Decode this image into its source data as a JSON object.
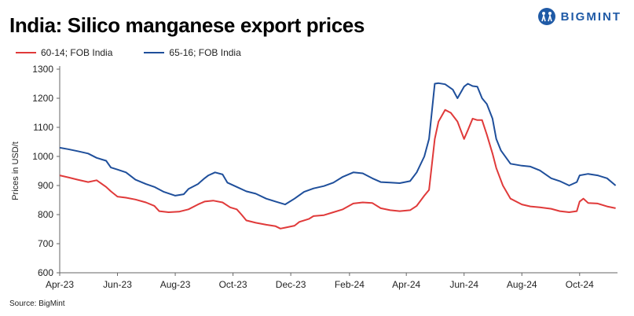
{
  "title": "India: Silico manganese export prices",
  "brand": {
    "name": "BIGMINT",
    "color": "#1f5aa6"
  },
  "source": "Source: BigMint",
  "chart_data": {
    "type": "line",
    "ylabel": "Prices in USD/t",
    "ylim": [
      600,
      1300
    ],
    "yticks": [
      600,
      700,
      800,
      900,
      1000,
      1100,
      1200,
      1300
    ],
    "xlim": [
      "2023-04-01",
      "2024-11-10"
    ],
    "xticks": [
      {
        "label": "Apr-23",
        "date": "2023-04-01"
      },
      {
        "label": "Jun-23",
        "date": "2023-06-01"
      },
      {
        "label": "Aug-23",
        "date": "2023-08-01"
      },
      {
        "label": "Oct-23",
        "date": "2023-10-01"
      },
      {
        "label": "Dec-23",
        "date": "2023-12-01"
      },
      {
        "label": "Feb-24",
        "date": "2024-02-01"
      },
      {
        "label": "Apr-24",
        "date": "2024-04-01"
      },
      {
        "label": "Jun-24",
        "date": "2024-06-01"
      },
      {
        "label": "Aug-24",
        "date": "2024-08-01"
      },
      {
        "label": "Oct-24",
        "date": "2024-10-01"
      }
    ],
    "legend_position": "top-left",
    "grid": false,
    "series": [
      {
        "name": "60-14; FOB India",
        "color": "#e03a3a",
        "points": [
          [
            "2023-04-01",
            935
          ],
          [
            "2023-04-10",
            928
          ],
          [
            "2023-04-20",
            920
          ],
          [
            "2023-05-01",
            912
          ],
          [
            "2023-05-10",
            918
          ],
          [
            "2023-05-20",
            895
          ],
          [
            "2023-05-25",
            880
          ],
          [
            "2023-06-01",
            862
          ],
          [
            "2023-06-10",
            858
          ],
          [
            "2023-06-20",
            852
          ],
          [
            "2023-07-01",
            842
          ],
          [
            "2023-07-10",
            830
          ],
          [
            "2023-07-15",
            812
          ],
          [
            "2023-07-25",
            808
          ],
          [
            "2023-08-05",
            810
          ],
          [
            "2023-08-15",
            818
          ],
          [
            "2023-08-25",
            835
          ],
          [
            "2023-09-01",
            845
          ],
          [
            "2023-09-10",
            848
          ],
          [
            "2023-09-20",
            842
          ],
          [
            "2023-09-28",
            825
          ],
          [
            "2023-10-05",
            818
          ],
          [
            "2023-10-10",
            800
          ],
          [
            "2023-10-15",
            780
          ],
          [
            "2023-10-25",
            772
          ],
          [
            "2023-11-05",
            765
          ],
          [
            "2023-11-15",
            760
          ],
          [
            "2023-11-20",
            752
          ],
          [
            "2023-11-25",
            755
          ],
          [
            "2023-12-05",
            762
          ],
          [
            "2023-12-10",
            775
          ],
          [
            "2023-12-20",
            785
          ],
          [
            "2023-12-25",
            795
          ],
          [
            "2024-01-05",
            798
          ],
          [
            "2024-01-15",
            808
          ],
          [
            "2024-01-25",
            818
          ],
          [
            "2024-02-05",
            838
          ],
          [
            "2024-02-15",
            842
          ],
          [
            "2024-02-25",
            840
          ],
          [
            "2024-03-05",
            822
          ],
          [
            "2024-03-15",
            815
          ],
          [
            "2024-03-25",
            812
          ],
          [
            "2024-04-05",
            815
          ],
          [
            "2024-04-12",
            830
          ],
          [
            "2024-04-20",
            865
          ],
          [
            "2024-04-25",
            885
          ],
          [
            "2024-05-01",
            1060
          ],
          [
            "2024-05-05",
            1120
          ],
          [
            "2024-05-12",
            1160
          ],
          [
            "2024-05-18",
            1150
          ],
          [
            "2024-05-25",
            1120
          ],
          [
            "2024-06-01",
            1060
          ],
          [
            "2024-06-05",
            1090
          ],
          [
            "2024-06-10",
            1130
          ],
          [
            "2024-06-15",
            1125
          ],
          [
            "2024-06-20",
            1125
          ],
          [
            "2024-06-25",
            1075
          ],
          [
            "2024-07-01",
            1010
          ],
          [
            "2024-07-05",
            960
          ],
          [
            "2024-07-12",
            900
          ],
          [
            "2024-07-20",
            855
          ],
          [
            "2024-08-01",
            835
          ],
          [
            "2024-08-10",
            828
          ],
          [
            "2024-08-20",
            825
          ],
          [
            "2024-09-01",
            820
          ],
          [
            "2024-09-10",
            812
          ],
          [
            "2024-09-20",
            808
          ],
          [
            "2024-09-28",
            812
          ],
          [
            "2024-10-01",
            845
          ],
          [
            "2024-10-05",
            855
          ],
          [
            "2024-10-10",
            840
          ],
          [
            "2024-10-20",
            838
          ],
          [
            "2024-10-30",
            828
          ],
          [
            "2024-11-08",
            822
          ]
        ]
      },
      {
        "name": "65-16; FOB India",
        "color": "#1f4f9b",
        "points": [
          [
            "2023-04-01",
            1030
          ],
          [
            "2023-04-10",
            1025
          ],
          [
            "2023-04-20",
            1018
          ],
          [
            "2023-05-01",
            1010
          ],
          [
            "2023-05-10",
            995
          ],
          [
            "2023-05-20",
            985
          ],
          [
            "2023-05-25",
            962
          ],
          [
            "2023-06-01",
            955
          ],
          [
            "2023-06-10",
            945
          ],
          [
            "2023-06-20",
            920
          ],
          [
            "2023-07-01",
            905
          ],
          [
            "2023-07-10",
            895
          ],
          [
            "2023-07-20",
            878
          ],
          [
            "2023-08-01",
            865
          ],
          [
            "2023-08-10",
            870
          ],
          [
            "2023-08-15",
            888
          ],
          [
            "2023-08-25",
            905
          ],
          [
            "2023-09-01",
            925
          ],
          [
            "2023-09-05",
            935
          ],
          [
            "2023-09-12",
            945
          ],
          [
            "2023-09-20",
            938
          ],
          [
            "2023-09-25",
            910
          ],
          [
            "2023-10-05",
            895
          ],
          [
            "2023-10-15",
            880
          ],
          [
            "2023-10-25",
            872
          ],
          [
            "2023-11-05",
            855
          ],
          [
            "2023-11-15",
            845
          ],
          [
            "2023-11-25",
            835
          ],
          [
            "2023-12-05",
            855
          ],
          [
            "2023-12-15",
            878
          ],
          [
            "2023-12-25",
            890
          ],
          [
            "2024-01-05",
            898
          ],
          [
            "2024-01-15",
            910
          ],
          [
            "2024-01-25",
            930
          ],
          [
            "2024-02-05",
            945
          ],
          [
            "2024-02-15",
            942
          ],
          [
            "2024-02-25",
            925
          ],
          [
            "2024-03-05",
            912
          ],
          [
            "2024-03-15",
            910
          ],
          [
            "2024-03-25",
            908
          ],
          [
            "2024-04-05",
            915
          ],
          [
            "2024-04-12",
            945
          ],
          [
            "2024-04-20",
            1000
          ],
          [
            "2024-04-25",
            1060
          ],
          [
            "2024-05-01",
            1250
          ],
          [
            "2024-05-05",
            1252
          ],
          [
            "2024-05-12",
            1248
          ],
          [
            "2024-05-20",
            1230
          ],
          [
            "2024-05-25",
            1200
          ],
          [
            "2024-06-01",
            1240
          ],
          [
            "2024-06-05",
            1250
          ],
          [
            "2024-06-10",
            1242
          ],
          [
            "2024-06-15",
            1240
          ],
          [
            "2024-06-20",
            1200
          ],
          [
            "2024-06-25",
            1180
          ],
          [
            "2024-07-01",
            1130
          ],
          [
            "2024-07-05",
            1060
          ],
          [
            "2024-07-10",
            1020
          ],
          [
            "2024-07-20",
            975
          ],
          [
            "2024-08-01",
            968
          ],
          [
            "2024-08-10",
            965
          ],
          [
            "2024-08-20",
            952
          ],
          [
            "2024-09-01",
            925
          ],
          [
            "2024-09-10",
            915
          ],
          [
            "2024-09-20",
            900
          ],
          [
            "2024-09-28",
            912
          ],
          [
            "2024-10-01",
            935
          ],
          [
            "2024-10-10",
            940
          ],
          [
            "2024-10-20",
            935
          ],
          [
            "2024-10-30",
            925
          ],
          [
            "2024-11-08",
            900
          ]
        ]
      }
    ]
  }
}
